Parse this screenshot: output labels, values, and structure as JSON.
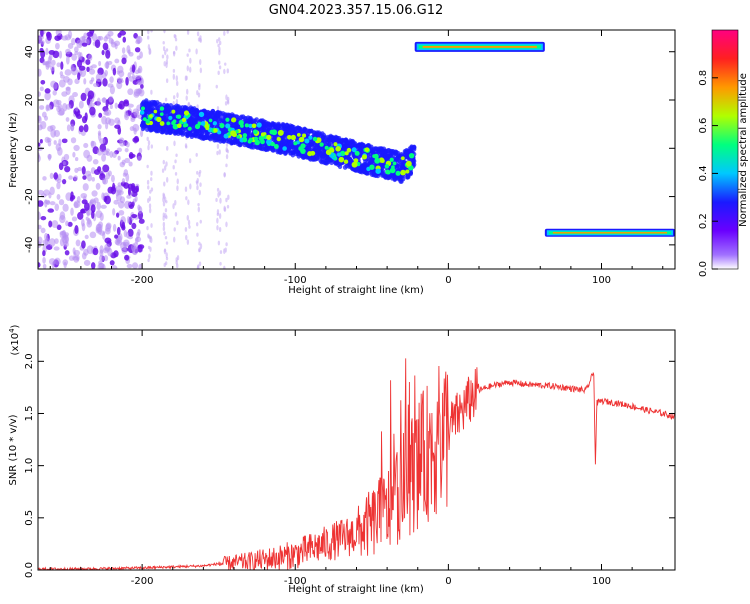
{
  "title": "GN04.2023.357.15.06.G12",
  "colors": {
    "snr_line": "#ee3333",
    "scatter_purple": "#7a1fe0",
    "colormap": [
      "#7f00ff",
      "#1a1aff",
      "#00c8ff",
      "#00ff7f",
      "#b0ff00",
      "#ff9900",
      "#ff0040"
    ]
  },
  "chart_data": [
    {
      "type": "heatmap",
      "title": "GN04.2023.357.15.06.G12",
      "xlabel": "Height of straight line (km)",
      "ylabel": "Frequency (Hz)",
      "xlim": [
        -268,
        148
      ],
      "ylim": [
        -50,
        49
      ],
      "xticks": [
        -200,
        -100,
        0,
        100
      ],
      "yticks": [
        -40,
        -20,
        0,
        20,
        40
      ],
      "colorbar": {
        "label": "Normalized spectral amplitude",
        "range": [
          0.0,
          1.0
        ],
        "ticks": [
          "0.0",
          "0.2",
          "0.4",
          "0.6",
          "0.8"
        ]
      },
      "features": [
        {
          "name": "noise",
          "x_range": [
            -268,
            -200
          ],
          "freq_range": [
            -50,
            49
          ],
          "amplitude": 0.05
        },
        {
          "name": "trend",
          "x": [
            -200,
            -150,
            -100,
            -50,
            -30,
            -22
          ],
          "freq": [
            14,
            9,
            3,
            -5,
            -8,
            -4
          ],
          "amplitude": 0.45
        },
        {
          "name": "upper",
          "x_range": [
            -22,
            63
          ],
          "freq": 42,
          "amplitude": 0.85
        },
        {
          "name": "lower",
          "x_range": [
            63,
            148
          ],
          "freq": -35,
          "amplitude": 0.85
        }
      ]
    },
    {
      "type": "line",
      "xlabel": "Height of straight line (km)",
      "ylabel": "SNR (10 * v/v)",
      "y_exponent": "(x10",
      "y_exponent_power": "4",
      "xlim": [
        -268,
        148
      ],
      "ylim": [
        0,
        2.3
      ],
      "xticks": [
        -200,
        -100,
        0,
        100
      ],
      "yticks": [
        "0.0",
        "0.5",
        "1.0",
        "1.5",
        "2.0"
      ],
      "series": [
        {
          "x": [
            -268,
            -240,
            -220,
            -200,
            -180,
            -160,
            -150,
            -130,
            -120,
            -110,
            -100,
            -90,
            -80,
            -70,
            -60,
            -50,
            -40,
            -35,
            -30,
            -25,
            -20,
            -15,
            -10,
            -5,
            0,
            5,
            10,
            15,
            20,
            25,
            30,
            40,
            50,
            60,
            70,
            80,
            90,
            95,
            96,
            97,
            100,
            110,
            120,
            130,
            140,
            148
          ],
          "y": [
            0.01,
            0.01,
            0.015,
            0.02,
            0.03,
            0.04,
            0.06,
            0.08,
            0.1,
            0.12,
            0.15,
            0.2,
            0.25,
            0.3,
            0.35,
            0.45,
            0.55,
            0.7,
            0.8,
            0.9,
            1.0,
            1.1,
            1.2,
            1.25,
            1.35,
            1.45,
            1.55,
            1.65,
            1.72,
            1.75,
            1.77,
            1.8,
            1.78,
            1.77,
            1.76,
            1.74,
            1.72,
            1.9,
            1.0,
            1.6,
            1.62,
            1.6,
            1.57,
            1.53,
            1.5,
            1.47
          ]
        }
      ]
    }
  ]
}
